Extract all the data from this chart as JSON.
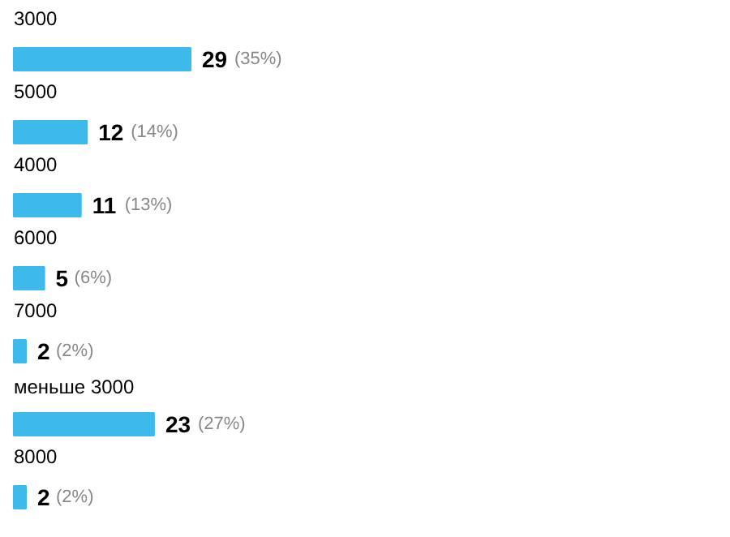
{
  "chart_data": {
    "type": "bar",
    "orientation": "horizontal",
    "categories": [
      "3000",
      "5000",
      "4000",
      "6000",
      "7000",
      "меньше 3000",
      "8000"
    ],
    "values": [
      29,
      12,
      11,
      5,
      2,
      23,
      2
    ],
    "value_labels": [
      "29 (35%)",
      "12 (14%)",
      "11 (13%)",
      "5 (6%)",
      "2 (2%)",
      "23 (27%)",
      "2 (2%)"
    ],
    "color": "#3db9ec",
    "grid": false
  }
}
